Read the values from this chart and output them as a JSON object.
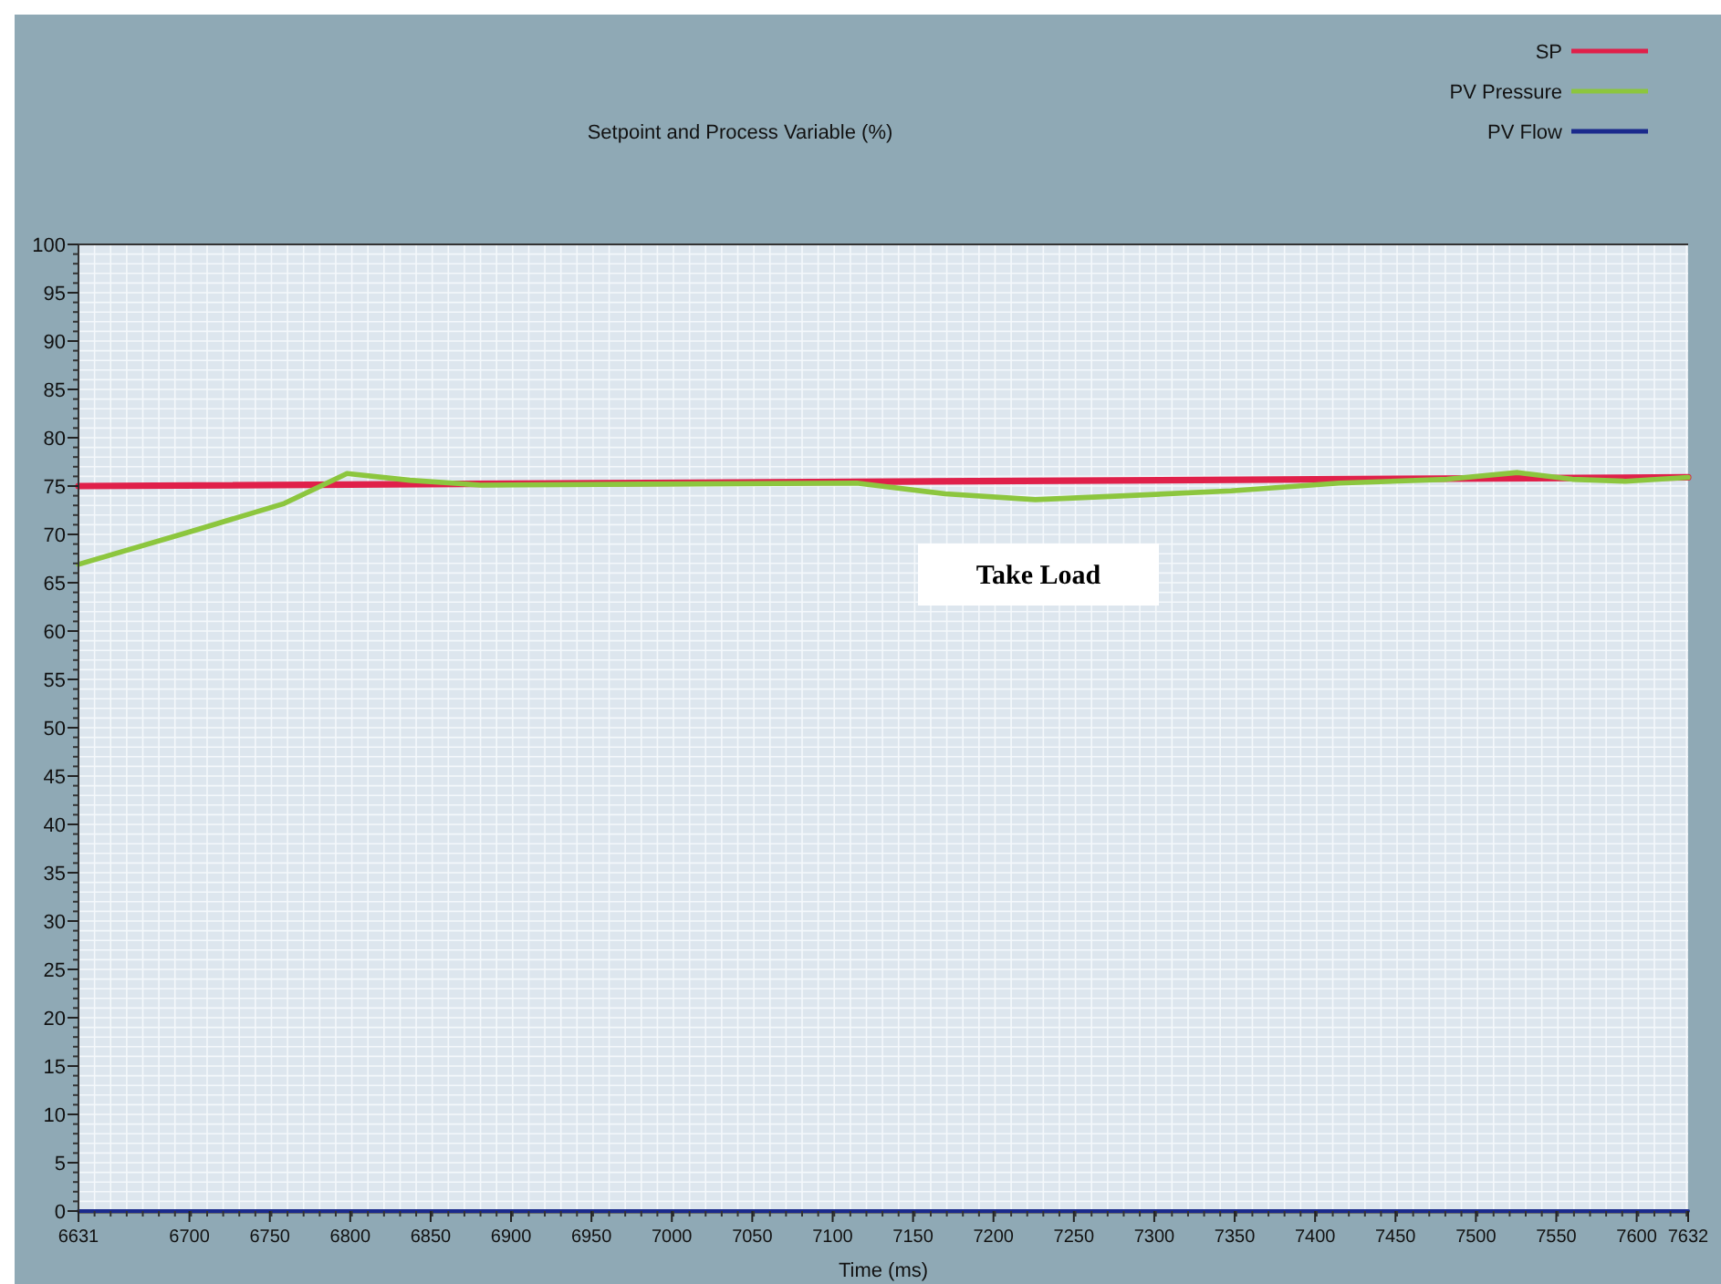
{
  "chart_data": {
    "type": "line",
    "title": "Setpoint and Process Variable (%)",
    "xlabel": "Time (ms)",
    "xlim": [
      6631,
      7632
    ],
    "xticks": [
      6631,
      6700,
      6750,
      6800,
      6850,
      6900,
      6950,
      7000,
      7050,
      7100,
      7150,
      7200,
      7250,
      7300,
      7350,
      7400,
      7450,
      7500,
      7550,
      7600,
      7632
    ],
    "ylim": [
      0,
      100
    ],
    "yticks": [
      0,
      5,
      10,
      15,
      20,
      25,
      30,
      35,
      40,
      45,
      50,
      55,
      60,
      65,
      70,
      75,
      80,
      85,
      90,
      95,
      100
    ],
    "grid": true,
    "legend": "top right",
    "marker": "none",
    "line_style": "solid",
    "annotations": [
      "Take Load"
    ],
    "series": [
      {
        "name": "SP",
        "color": "#e0204a",
        "x": [
          6631,
          7632
        ],
        "values": [
          75,
          75.9
        ]
      },
      {
        "name": "PV Pressure",
        "color": "#8cc63e",
        "x": [
          6631,
          6703,
          6759,
          6798,
          6837,
          6881,
          6981,
          7115,
          7170,
          7226,
          7282,
          7348,
          7415,
          7482,
          7526,
          7560,
          7593,
          7632
        ],
        "values": [
          66.9,
          70.4,
          73.2,
          76.3,
          75.6,
          75.1,
          75.2,
          75.3,
          74.2,
          73.6,
          74.0,
          74.5,
          75.3,
          75.7,
          76.4,
          75.7,
          75.5,
          75.9
        ]
      },
      {
        "name": "PV Flow",
        "color": "#1a2a8c",
        "x": [
          6631,
          7632
        ],
        "values": [
          0,
          0
        ]
      }
    ]
  }
}
